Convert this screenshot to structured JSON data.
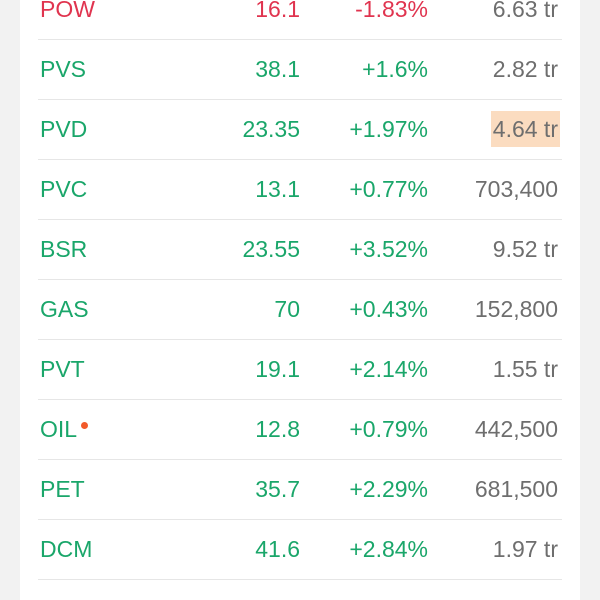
{
  "accent_up": "#1aa66a",
  "accent_down": "#e0344f",
  "highlight_color": "#fbdcc0",
  "stocks": [
    {
      "ticker": "POW",
      "price": "16.1",
      "change": "-1.83%",
      "volume": "6.63 tr"
    },
    {
      "ticker": "PVS",
      "price": "38.1",
      "change": "+1.6%",
      "volume": "2.82 tr"
    },
    {
      "ticker": "PVD",
      "price": "23.35",
      "change": "+1.97%",
      "volume": "4.64 tr"
    },
    {
      "ticker": "PVC",
      "price": "13.1",
      "change": "+0.77%",
      "volume": "703,400"
    },
    {
      "ticker": "BSR",
      "price": "23.55",
      "change": "+3.52%",
      "volume": "9.52 tr"
    },
    {
      "ticker": "GAS",
      "price": "70",
      "change": "+0.43%",
      "volume": "152,800"
    },
    {
      "ticker": "PVT",
      "price": "19.1",
      "change": "+2.14%",
      "volume": "1.55 tr"
    },
    {
      "ticker": "OIL",
      "price": "12.8",
      "change": "+0.79%",
      "volume": "442,500"
    },
    {
      "ticker": "PET",
      "price": "35.7",
      "change": "+2.29%",
      "volume": "681,500"
    },
    {
      "ticker": "DCM",
      "price": "41.6",
      "change": "+2.84%",
      "volume": "1.97 tr"
    }
  ]
}
